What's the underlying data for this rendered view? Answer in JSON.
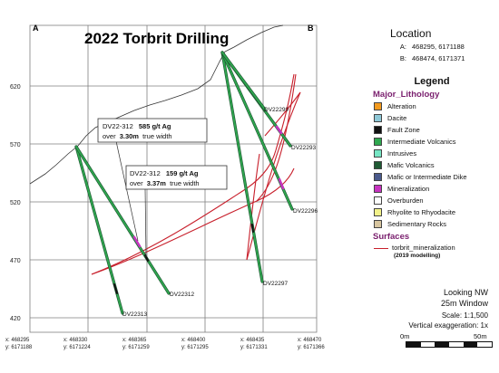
{
  "title": "2022 Torbrit Drilling",
  "section_ends": {
    "a": "A",
    "b": "B"
  },
  "y_ticks": [
    "620",
    "570",
    "520",
    "470",
    "420"
  ],
  "x_ticks": [
    {
      "x": "x: 468295",
      "y": "y: 6171188"
    },
    {
      "x": "x: 468330",
      "y": "y: 6171224"
    },
    {
      "x": "x: 468365",
      "y": "y: 6171259"
    },
    {
      "x": "x: 468400",
      "y": "y: 6171295"
    },
    {
      "x": "x: 468435",
      "y": "y: 6171331"
    },
    {
      "x": "x: 468470",
      "y": "y: 6171366"
    }
  ],
  "drill_holes": [
    {
      "name": "DV22-313",
      "label": "DV22313"
    },
    {
      "name": "DV22-312",
      "label": "DV22312"
    },
    {
      "name": "DV22-299",
      "label": "DV22299"
    },
    {
      "name": "DV22-293",
      "label": "DV22293"
    },
    {
      "name": "DV22-296",
      "label": "DV22296"
    },
    {
      "name": "DV22-297",
      "label": "DV22297"
    }
  ],
  "callouts": [
    {
      "hole": "DV22-312",
      "grade": "585 g/t Ag",
      "over": "over",
      "width": "3.30m",
      "suffix": "true width"
    },
    {
      "hole": "DV22-312",
      "grade": "159 g/t Ag",
      "over": "over",
      "width": "3.37m",
      "suffix": "true width"
    }
  ],
  "location": {
    "title": "Location",
    "rows": [
      {
        "key": "A:",
        "value": "468295, 6171188"
      },
      {
        "key": "B:",
        "value": "468474, 6171371"
      }
    ]
  },
  "legend": {
    "title": "Legend",
    "lithology_title": "Major_Lithology",
    "items": [
      {
        "label": "Alteration",
        "color": "#f39a1e"
      },
      {
        "label": "Dacite",
        "color": "#8ec9d8"
      },
      {
        "label": "Fault Zone",
        "color": "#111111"
      },
      {
        "label": "Intermediate Volcanics",
        "color": "#2fa84f"
      },
      {
        "label": "Intrusives",
        "color": "#76e6c4"
      },
      {
        "label": "Mafic Volcanics",
        "color": "#1f5a34"
      },
      {
        "label": "Mafic or Intermediate Dike",
        "color": "#4a5a8c"
      },
      {
        "label": "Mineralization",
        "color": "#c733c0"
      },
      {
        "label": "Overburden",
        "color": "#ffffff"
      },
      {
        "label": "Rhyolite to Rhyodacite",
        "color": "#f2f28a"
      },
      {
        "label": "Sedimentary Rocks",
        "color": "#d8c6a0"
      }
    ],
    "surfaces_title": "Surfaces",
    "surface_label": "torbrit_mineralization",
    "surface_note": "(2019 modelling)",
    "surface_color": "#c8202c"
  },
  "view": {
    "direction": "Looking NW",
    "window": "25m Window",
    "scale": "Scale: 1:1,500",
    "exaggeration": "Vertical exaggeration: 1x",
    "bar_start": "0m",
    "bar_end": "50m"
  }
}
